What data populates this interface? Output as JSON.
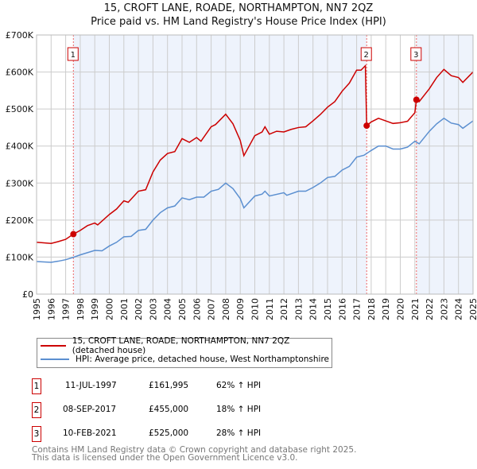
{
  "chart_data": {
    "type": "line",
    "title": "15, CROFT LANE, ROADE, NORTHAMPTON, NN7 2QZ",
    "subtitle": "Price paid vs. HM Land Registry's House Price Index (HPI)",
    "xlim": [
      1995,
      2025
    ],
    "ylim": [
      0,
      700000
    ],
    "yticks": [
      {
        "v": 0,
        "label": "£0"
      },
      {
        "v": 100000,
        "label": "£100K"
      },
      {
        "v": 200000,
        "label": "£200K"
      },
      {
        "v": 300000,
        "label": "£300K"
      },
      {
        "v": 400000,
        "label": "£400K"
      },
      {
        "v": 500000,
        "label": "£500K"
      },
      {
        "v": 600000,
        "label": "£600K"
      },
      {
        "v": 700000,
        "label": "£700K"
      }
    ],
    "xticks": [
      "1995",
      "1996",
      "1997",
      "1998",
      "1999",
      "2000",
      "2001",
      "2002",
      "2003",
      "2004",
      "2005",
      "2006",
      "2007",
      "2008",
      "2009",
      "2010",
      "2011",
      "2012",
      "2013",
      "2014",
      "2015",
      "2016",
      "2017",
      "2018",
      "2019",
      "2020",
      "2021",
      "2022",
      "2023",
      "2024",
      "2025"
    ],
    "grid": true,
    "series": [
      {
        "name": "15, CROFT LANE, ROADE, NORTHAMPTON, NN7 2QZ (detached house)",
        "color": "#cc0000",
        "x": [
          1995,
          1996,
          1996.5,
          1997,
          1997.53,
          1998,
          1998.5,
          1999,
          1999.2,
          2000,
          2000.5,
          2001,
          2001.3,
          2002,
          2002.5,
          2003,
          2003.5,
          2004,
          2004.5,
          2005,
          2005.5,
          2006,
          2006.3,
          2007,
          2007.3,
          2008,
          2008.5,
          2009,
          2009.25,
          2010,
          2010.5,
          2010.7,
          2011,
          2011.5,
          2012,
          2012.5,
          2013,
          2013.5,
          2014,
          2014.5,
          2015,
          2015.5,
          2016,
          2016.5,
          2017,
          2017.3,
          2017.6,
          2017.69,
          2018,
          2018.5,
          2019,
          2019.5,
          2020,
          2020.5,
          2021,
          2021.11,
          2021.3,
          2022,
          2022.5,
          2023,
          2023.5,
          2024,
          2024.3,
          2025
        ],
        "y": [
          140000,
          137000,
          142000,
          148000,
          161995,
          172000,
          185000,
          192000,
          187000,
          215000,
          230000,
          252000,
          248000,
          278000,
          282000,
          330000,
          362000,
          380000,
          385000,
          420000,
          410000,
          423000,
          413000,
          452000,
          458000,
          486000,
          460000,
          415000,
          374000,
          428000,
          438000,
          452000,
          432000,
          440000,
          438000,
          445000,
          450000,
          452000,
          468000,
          485000,
          505000,
          520000,
          548000,
          570000,
          605000,
          605000,
          617000,
          455000,
          465000,
          475000,
          468000,
          461000,
          463000,
          467000,
          490000,
          525000,
          520000,
          555000,
          585000,
          607000,
          590000,
          585000,
          572000,
          600000
        ]
      },
      {
        "name": "HPI: Average price, detached house, West Northamptonshire",
        "color": "#5b8fd0",
        "x": [
          1995,
          1996,
          1996.5,
          1997,
          1997.5,
          1998,
          1999,
          1999.5,
          2000,
          2000.5,
          2001,
          2001.5,
          2002,
          2002.5,
          2003,
          2003.5,
          2004,
          2004.5,
          2005,
          2005.5,
          2006,
          2006.5,
          2007,
          2007.5,
          2008,
          2008.5,
          2009,
          2009.25,
          2010,
          2010.5,
          2010.7,
          2011,
          2012,
          2012.2,
          2013,
          2013.5,
          2014,
          2014.5,
          2015,
          2015.5,
          2016,
          2016.5,
          2017,
          2017.5,
          2018,
          2018.5,
          2019,
          2019.5,
          2020,
          2020.5,
          2021,
          2021.3,
          2022,
          2022.5,
          2023,
          2023.5,
          2024,
          2024.3,
          2025
        ],
        "y": [
          88000,
          86000,
          89000,
          93000,
          99000,
          106000,
          118000,
          117000,
          130000,
          140000,
          155000,
          156000,
          172000,
          175000,
          200000,
          220000,
          233000,
          238000,
          260000,
          255000,
          262000,
          262000,
          278000,
          283000,
          300000,
          285000,
          258000,
          233000,
          265000,
          270000,
          278000,
          265000,
          274000,
          267000,
          278000,
          278000,
          288000,
          300000,
          315000,
          318000,
          335000,
          345000,
          370000,
          375000,
          388000,
          400000,
          400000,
          392000,
          392000,
          397000,
          413000,
          406000,
          440000,
          460000,
          475000,
          462000,
          458000,
          448000,
          468000
        ]
      }
    ],
    "sales": [
      {
        "label": "1",
        "date": "11-JUL-1997",
        "x": 1997.53,
        "price": "£161,995",
        "value": 161995,
        "hpi": "62% ↑ HPI"
      },
      {
        "label": "2",
        "date": "08-SEP-2017",
        "x": 2017.69,
        "price": "£455,000",
        "value": 455000,
        "hpi": "18% ↑ HPI"
      },
      {
        "label": "3",
        "date": "10-FEB-2021",
        "x": 2021.11,
        "price": "£525,000",
        "value": 525000,
        "hpi": "28% ↑ HPI"
      }
    ]
  },
  "footer": {
    "line1": "Contains HM Land Registry data © Crown copyright and database right 2025.",
    "line2": "This data is licensed under the Open Government Licence v3.0."
  }
}
